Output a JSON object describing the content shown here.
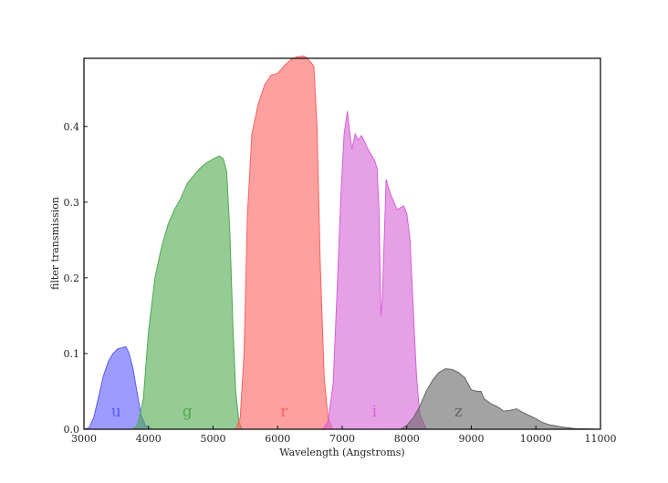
{
  "chart_data": {
    "type": "area",
    "title": "",
    "xlabel": "Wavelength (Angstroms)",
    "ylabel": "filter transmission",
    "xlim": [
      3000,
      11000
    ],
    "ylim": [
      0.0,
      0.49
    ],
    "grid": false,
    "x_ticks": [
      3000,
      4000,
      5000,
      6000,
      7000,
      8000,
      9000,
      10000,
      11000
    ],
    "x_tick_labels": [
      "3000",
      "4000",
      "5000",
      "6000",
      "7000",
      "8000",
      "9000",
      "10000",
      "11000"
    ],
    "y_ticks": [
      0.0,
      0.1,
      0.2,
      0.3,
      0.4
    ],
    "y_tick_labels": [
      "0.0",
      "0.1",
      "0.2",
      "0.3",
      "0.4"
    ],
    "series": [
      {
        "name": "u",
        "color": "#5a5aff",
        "label_x": 3500,
        "label_y": 0.012,
        "points": [
          [
            3000,
            0
          ],
          [
            3080,
            0.002
          ],
          [
            3150,
            0.015
          ],
          [
            3220,
            0.04
          ],
          [
            3300,
            0.07
          ],
          [
            3380,
            0.09
          ],
          [
            3450,
            0.1
          ],
          [
            3520,
            0.106
          ],
          [
            3600,
            0.108
          ],
          [
            3650,
            0.109
          ],
          [
            3700,
            0.1
          ],
          [
            3760,
            0.08
          ],
          [
            3820,
            0.05
          ],
          [
            3880,
            0.02
          ],
          [
            3950,
            0.005
          ],
          [
            4050,
            0
          ]
        ]
      },
      {
        "name": "g",
        "color": "#4fa84f",
        "label_x": 4600,
        "label_y": 0.012,
        "points": [
          [
            3750,
            0
          ],
          [
            3830,
            0.005
          ],
          [
            3920,
            0.04
          ],
          [
            4000,
            0.13
          ],
          [
            4100,
            0.2
          ],
          [
            4200,
            0.24
          ],
          [
            4300,
            0.27
          ],
          [
            4400,
            0.29
          ],
          [
            4500,
            0.305
          ],
          [
            4600,
            0.325
          ],
          [
            4700,
            0.335
          ],
          [
            4800,
            0.345
          ],
          [
            4900,
            0.352
          ],
          [
            5000,
            0.357
          ],
          [
            5100,
            0.361
          ],
          [
            5160,
            0.357
          ],
          [
            5210,
            0.34
          ],
          [
            5260,
            0.26
          ],
          [
            5310,
            0.13
          ],
          [
            5350,
            0.05
          ],
          [
            5400,
            0.01
          ],
          [
            5450,
            0
          ]
        ]
      },
      {
        "name": "r",
        "color": "#ff6060",
        "label_x": 6100,
        "label_y": 0.012,
        "points": [
          [
            5350,
            0
          ],
          [
            5420,
            0.015
          ],
          [
            5480,
            0.1
          ],
          [
            5530,
            0.28
          ],
          [
            5600,
            0.39
          ],
          [
            5700,
            0.43
          ],
          [
            5800,
            0.455
          ],
          [
            5900,
            0.468
          ],
          [
            6000,
            0.47
          ],
          [
            6100,
            0.48
          ],
          [
            6200,
            0.488
          ],
          [
            6300,
            0.492
          ],
          [
            6400,
            0.493
          ],
          [
            6450,
            0.491
          ],
          [
            6500,
            0.486
          ],
          [
            6560,
            0.48
          ],
          [
            6610,
            0.4
          ],
          [
            6660,
            0.22
          ],
          [
            6720,
            0.07
          ],
          [
            6780,
            0.015
          ],
          [
            6850,
            0
          ]
        ]
      },
      {
        "name": "i",
        "color": "#d660d6",
        "label_x": 7500,
        "label_y": 0.012,
        "points": [
          [
            6700,
            0
          ],
          [
            6780,
            0.01
          ],
          [
            6860,
            0.06
          ],
          [
            6920,
            0.18
          ],
          [
            6980,
            0.31
          ],
          [
            7030,
            0.39
          ],
          [
            7080,
            0.42
          ],
          [
            7120,
            0.39
          ],
          [
            7150,
            0.37
          ],
          [
            7200,
            0.39
          ],
          [
            7250,
            0.382
          ],
          [
            7300,
            0.388
          ],
          [
            7400,
            0.37
          ],
          [
            7500,
            0.355
          ],
          [
            7540,
            0.345
          ],
          [
            7570,
            0.29
          ],
          [
            7600,
            0.15
          ],
          [
            7620,
            0.17
          ],
          [
            7680,
            0.33
          ],
          [
            7750,
            0.31
          ],
          [
            7850,
            0.29
          ],
          [
            7950,
            0.295
          ],
          [
            8000,
            0.285
          ],
          [
            8050,
            0.25
          ],
          [
            8100,
            0.16
          ],
          [
            8150,
            0.07
          ],
          [
            8200,
            0.02
          ],
          [
            8300,
            0
          ]
        ]
      },
      {
        "name": "z",
        "color": "#666666",
        "label_x": 8800,
        "label_y": 0.012,
        "points": [
          [
            7900,
            0
          ],
          [
            8000,
            0.005
          ],
          [
            8100,
            0.015
          ],
          [
            8200,
            0.03
          ],
          [
            8300,
            0.05
          ],
          [
            8400,
            0.065
          ],
          [
            8500,
            0.075
          ],
          [
            8600,
            0.08
          ],
          [
            8700,
            0.079
          ],
          [
            8800,
            0.075
          ],
          [
            8900,
            0.068
          ],
          [
            9000,
            0.052
          ],
          [
            9100,
            0.05
          ],
          [
            9150,
            0.05
          ],
          [
            9200,
            0.04
          ],
          [
            9300,
            0.034
          ],
          [
            9400,
            0.03
          ],
          [
            9500,
            0.024
          ],
          [
            9600,
            0.025
          ],
          [
            9700,
            0.027
          ],
          [
            9800,
            0.022
          ],
          [
            9900,
            0.018
          ],
          [
            10000,
            0.014
          ],
          [
            10100,
            0.009
          ],
          [
            10200,
            0.006
          ],
          [
            10400,
            0.003
          ],
          [
            10600,
            0.001
          ],
          [
            11000,
            0
          ]
        ]
      }
    ]
  }
}
